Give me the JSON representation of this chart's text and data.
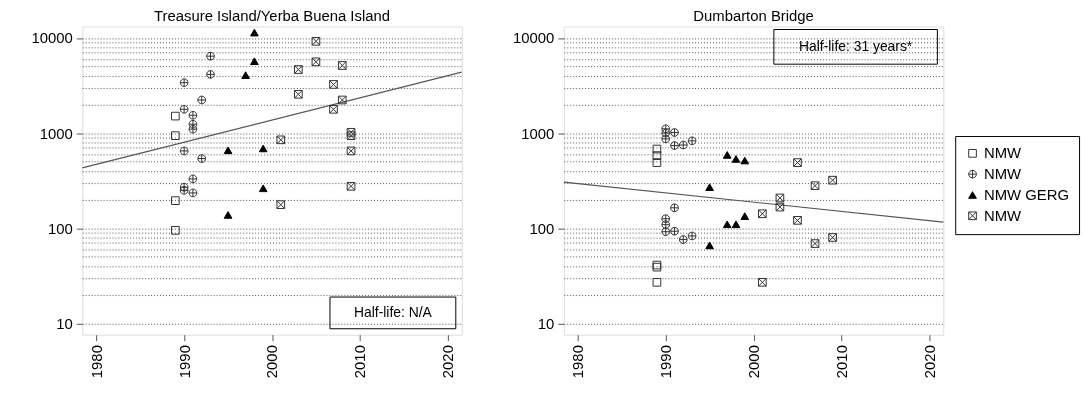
{
  "chart_data": [
    {
      "type": "scatter",
      "title": "Treasure Island/Yerba Buena Island",
      "xlim": [
        1978.4,
        2021.6
      ],
      "xticks": [
        1980,
        1990,
        2000,
        2010,
        2020
      ],
      "ylim": [
        7.6,
        13200
      ],
      "yticks": [
        10,
        {
          "value": 20,
          "label": null
        },
        {
          "value": 30,
          "label": null
        },
        {
          "value": 40,
          "label": null
        },
        {
          "value": 50,
          "label": null
        },
        {
          "value": 60,
          "label": null
        },
        {
          "value": 70,
          "label": null
        },
        {
          "value": 80,
          "label": null
        },
        {
          "value": 90,
          "label": null
        },
        100,
        {
          "value": 200,
          "label": null
        },
        {
          "value": 300,
          "label": null
        },
        {
          "value": 400,
          "label": null
        },
        {
          "value": 500,
          "label": null
        },
        {
          "value": 600,
          "label": null
        },
        {
          "value": 700,
          "label": null
        },
        {
          "value": 800,
          "label": null
        },
        {
          "value": 900,
          "label": null
        },
        1000,
        {
          "value": 2000,
          "label": null
        },
        {
          "value": 3000,
          "label": null
        },
        {
          "value": 4000,
          "label": null
        },
        {
          "value": 5000,
          "label": null
        },
        {
          "value": 6000,
          "label": null
        },
        {
          "value": 7000,
          "label": null
        },
        {
          "value": 8000,
          "label": null
        },
        {
          "value": 9000,
          "label": null
        },
        10000
      ],
      "log": "y",
      "grid": "y",
      "legend": "right",
      "annotations": [
        "Half-life: N/A"
      ],
      "series": [
        {
          "name": "NMW",
          "color": "#333333",
          "marker": "square",
          "x": [
            1989,
            1989,
            1989,
            1989
          ],
          "values": [
            1510,
            940,
            195,
            95
          ]
        },
        {
          "name": "NMW",
          "color": "#333333",
          "x": [
            1993,
            1993,
            1990,
            1992,
            1990,
            1991,
            1991,
            1991,
            1990,
            1992,
            1991,
            1990,
            1990,
            1991
          ],
          "values": [
            6440,
            4140,
            3390,
            2230,
            1780,
            1540,
            1240,
            1100,
            650,
            540,
            330,
            270,
            250,
            235
          ]
        },
        {
          "name": "NMW GERG",
          "color": "#000000",
          "marker": "triangle",
          "x": [
            1998,
            1998,
            1997,
            1995,
            1999,
            1999,
            1995
          ],
          "values": [
            11400,
            5700,
            4070,
            660,
            690,
            263,
            138
          ]
        },
        {
          "name": "NMW",
          "color": "#333333",
          "marker": "cross",
          "x": [
            2005,
            2005,
            2003,
            2008,
            2007,
            2003,
            2008,
            2007,
            2009,
            2009,
            2001,
            2009,
            2009,
            2001
          ],
          "values": [
            9230,
            5620,
            4660,
            5140,
            3250,
            2560,
            2230,
            1780,
            1020,
            940,
            850,
            650,
            276,
            177
          ]
        },
        {
          "type": "line",
          "color": "#555555",
          "x": [
            1978.4,
            2021.6
          ],
          "values": [
            431,
            4380
          ]
        }
      ]
    },
    {
      "type": "scatter",
      "title": "Dumbarton Bridge",
      "xlim": [
        1978.4,
        2021.6
      ],
      "xticks": [
        1980,
        1990,
        2000,
        2010,
        2020
      ],
      "ylim": [
        7.6,
        13200
      ],
      "yticks": [
        10,
        {
          "value": 20,
          "label": null
        },
        {
          "value": 30,
          "label": null
        },
        {
          "value": 40,
          "label": null
        },
        {
          "value": 50,
          "label": null
        },
        {
          "value": 60,
          "label": null
        },
        {
          "value": 70,
          "label": null
        },
        {
          "value": 80,
          "label": null
        },
        {
          "value": 90,
          "label": null
        },
        100,
        {
          "value": 200,
          "label": null
        },
        {
          "value": 300,
          "label": null
        },
        {
          "value": 400,
          "label": null
        },
        {
          "value": 500,
          "label": null
        },
        {
          "value": 600,
          "label": null
        },
        {
          "value": 700,
          "label": null
        },
        {
          "value": 800,
          "label": null
        },
        {
          "value": 900,
          "label": null
        },
        1000,
        {
          "value": 2000,
          "label": null
        },
        {
          "value": 3000,
          "label": null
        },
        {
          "value": 4000,
          "label": null
        },
        {
          "value": 5000,
          "label": null
        },
        {
          "value": 6000,
          "label": null
        },
        {
          "value": 7000,
          "label": null
        },
        {
          "value": 8000,
          "label": null
        },
        {
          "value": 9000,
          "label": null
        },
        10000
      ],
      "log": "y",
      "grid": "y",
      "legend": "right",
      "annotations": [
        "Half-life:  31 years*"
      ],
      "series": [
        {
          "name": "NMW",
          "color": "#333333",
          "marker": "square",
          "x": [
            1989,
            1989,
            1989,
            1989,
            1989,
            1989
          ],
          "values": [
            680,
            580,
            490,
            41,
            39,
            27
          ]
        },
        {
          "name": "NMW",
          "color": "#333333",
          "x": [
            1990,
            1990,
            1990,
            1991,
            1991,
            1992,
            1993,
            1991,
            1990,
            1990,
            1990,
            1991,
            1992,
            1993
          ],
          "values": [
            1110,
            1000,
            870,
            1015,
            740,
            750,
            830,
            164,
            126,
            109,
            92,
            93,
            76,
            83
          ]
        },
        {
          "name": "NMW GERG",
          "color": "#000000",
          "marker": "triangle",
          "x": [
            1997,
            1998,
            1999,
            1995,
            1999,
            1997,
            1998,
            1995
          ],
          "values": [
            590,
            535,
            515,
            270,
            134,
            110,
            110,
            66
          ]
        },
        {
          "name": "NMW",
          "color": "#333333",
          "marker": "cross",
          "x": [
            2005,
            2009,
            2007,
            2003,
            2003,
            2001,
            2005,
            2009,
            2007,
            2001
          ],
          "values": [
            490,
            320,
            280,
            208,
            167,
            142,
            121,
            80,
            69,
            27
          ]
        },
        {
          "type": "line",
          "color": "#555555",
          "x": [
            1978.4,
            2021.6
          ],
          "values": [
            305,
            116
          ]
        }
      ]
    }
  ]
}
